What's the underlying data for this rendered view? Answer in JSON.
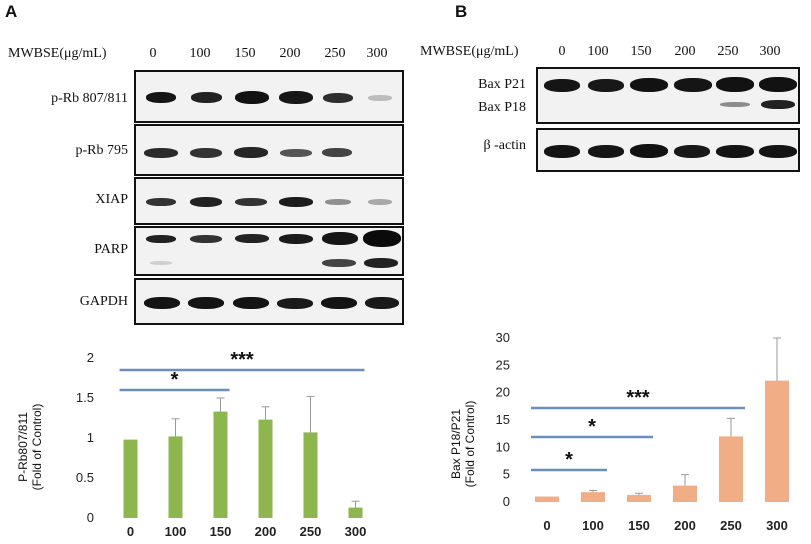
{
  "panel_a": {
    "letter": "A",
    "treatment_label": "MWBSE(μg/mL)",
    "lanes": [
      "0",
      "100",
      "150",
      "200",
      "250",
      "300"
    ],
    "blots": [
      {
        "label": "p-Rb 807/811"
      },
      {
        "label": "p-Rb 795"
      },
      {
        "label": "XIAP"
      },
      {
        "label": "PARP"
      },
      {
        "label": "GAPDH"
      }
    ]
  },
  "panel_b": {
    "letter": "B",
    "treatment_label": "MWBSE(μg/mL)",
    "lanes": [
      "0",
      "100",
      "150",
      "200",
      "250",
      "300"
    ],
    "blots": [
      {
        "label_top": "Bax P21",
        "label_bottom": "Bax P18"
      },
      {
        "label": "β -actin"
      }
    ]
  },
  "chart_data": [
    {
      "type": "bar",
      "categories": [
        "0",
        "100",
        "150",
        "200",
        "250",
        "300"
      ],
      "values": [
        0.98,
        1.02,
        1.33,
        1.23,
        1.07,
        0.13
      ],
      "errors": [
        0.0,
        0.22,
        0.17,
        0.16,
        0.45,
        0.08
      ],
      "ylabel": "P-Rb807/811\n(Fold of Control)",
      "ylim": [
        0,
        2
      ],
      "yticks": [
        "0",
        "0.5",
        "1",
        "1.5",
        "2"
      ],
      "color": "#8db64f",
      "significance": [
        {
          "label": "*",
          "from": "0",
          "to": "150"
        },
        {
          "label": "***",
          "from": "0",
          "to": "300"
        }
      ]
    },
    {
      "type": "bar",
      "categories": [
        "0",
        "100",
        "150",
        "200",
        "250",
        "300"
      ],
      "values": [
        1.0,
        1.8,
        1.3,
        3.0,
        12.0,
        22.2
      ],
      "errors": [
        0.0,
        0.3,
        0.3,
        2.0,
        3.3,
        7.8
      ],
      "ylabel": "Bax P18/P21\n(Fold of Control)",
      "ylim": [
        0,
        30
      ],
      "yticks": [
        "0",
        "5",
        "10",
        "15",
        "20",
        "25",
        "30"
      ],
      "color": "#f0ad86",
      "significance": [
        {
          "label": "*",
          "from": "0",
          "to": "100"
        },
        {
          "label": "*",
          "from": "0",
          "to": "150"
        },
        {
          "label": "***",
          "from": "0",
          "to": "250"
        }
      ]
    }
  ]
}
